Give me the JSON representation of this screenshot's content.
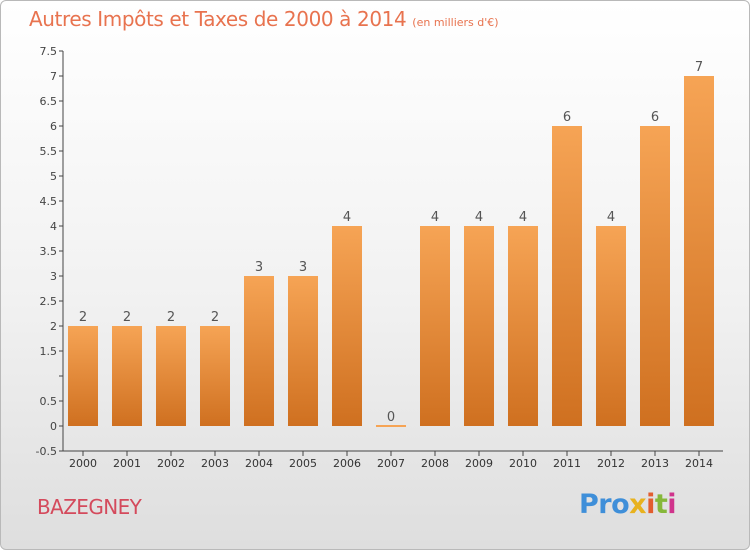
{
  "chart_data": {
    "type": "bar",
    "title": "Autres Impôts et Taxes de 2000 à 2014",
    "unit_label": "(en milliers d'€)",
    "categories": [
      "2000",
      "2001",
      "2002",
      "2003",
      "2004",
      "2005",
      "2006",
      "2007",
      "2008",
      "2009",
      "2010",
      "2011",
      "2012",
      "2013",
      "2014"
    ],
    "values": [
      2,
      2,
      2,
      2,
      3,
      3,
      4,
      0,
      4,
      4,
      4,
      6,
      4,
      6,
      7
    ],
    "data_labels": [
      "2",
      "2",
      "2",
      "2",
      "3",
      "3",
      "4",
      "0",
      "4",
      "4",
      "4",
      "6",
      "4",
      "6",
      "7"
    ],
    "ylim": [
      -0.5,
      7.5
    ],
    "yticks": [
      -0.5,
      0,
      0.5,
      1,
      1.5,
      2,
      2.5,
      3,
      3.5,
      4,
      4.5,
      5,
      5.5,
      6,
      6.5,
      7,
      7.5
    ],
    "ytick_labels": [
      "-0.5",
      "0",
      "0.5",
      "",
      "1.5",
      "2",
      "2.5",
      "3",
      "3.5",
      "4",
      "4.5",
      "5",
      "5.5",
      "6",
      "6.5",
      "7",
      "7.5"
    ],
    "grid": false,
    "bar_color_top": "#f6a455",
    "bar_color_bottom": "#cf7020"
  },
  "commune": "BAZEGNEY",
  "logo": [
    "Pro",
    "x",
    "i",
    "t",
    "i"
  ]
}
